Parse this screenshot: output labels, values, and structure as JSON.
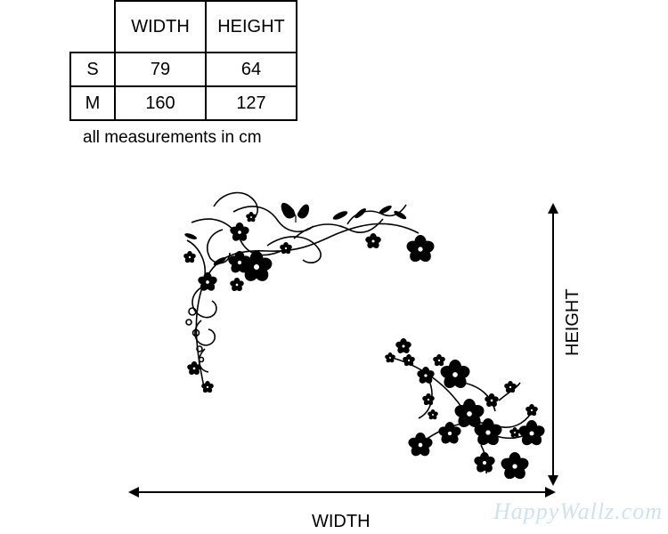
{
  "size_chart": {
    "headers": [
      "WIDTH",
      "HEIGHT"
    ],
    "rows": [
      {
        "size": "S",
        "width": "79",
        "height": "64"
      },
      {
        "size": "M",
        "width": "160",
        "height": "127"
      }
    ],
    "note": "all measurements in cm"
  },
  "dimensions": {
    "width_label": "WIDTH",
    "height_label": "HEIGHT"
  },
  "artwork": {
    "subject": "floral-corner-vine-decal",
    "color": "#000000"
  },
  "watermark": {
    "text": "HappyWallz.com",
    "color": "#cfe3ec"
  }
}
